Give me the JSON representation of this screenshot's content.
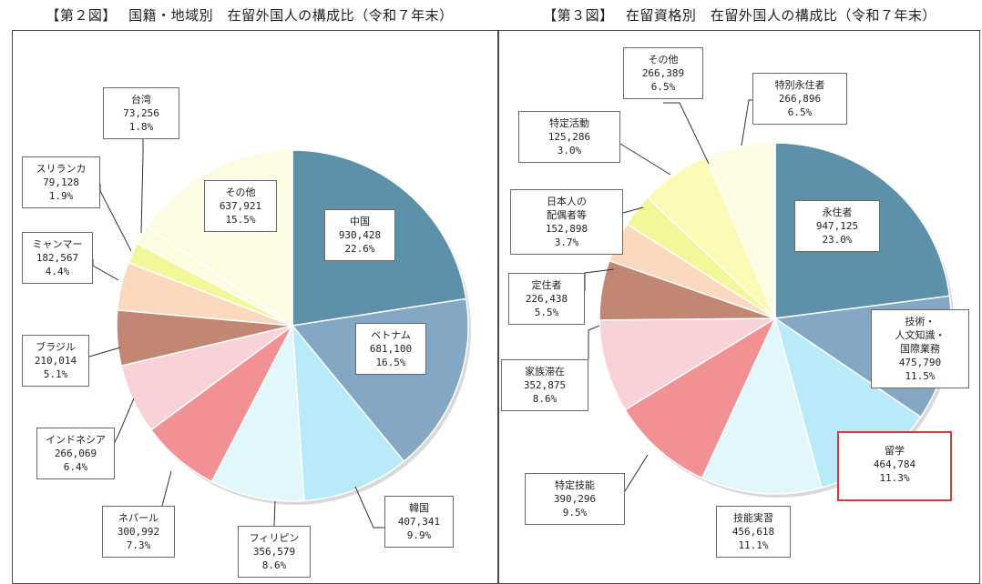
{
  "chart_data": [
    {
      "type": "pie",
      "title": "【第２図】　 国籍・地域別　在留外国人の構成比（令和７年末）",
      "slices": [
        {
          "name": "中国",
          "value": "930,428",
          "percent": "22.6%",
          "color": "#5d91aa"
        },
        {
          "name": "ベトナム",
          "value": "681,100",
          "percent": "16.5%",
          "color": "#84a7c4"
        },
        {
          "name": "韓国",
          "value": "407,341",
          "percent": "9.9%",
          "color": "#b9eaf9"
        },
        {
          "name": "フィリピン",
          "value": "356,579",
          "percent": "8.6%",
          "color": "#e1f7fb"
        },
        {
          "name": "ネパール",
          "value": "300,992",
          "percent": "7.3%",
          "color": "#f29193"
        },
        {
          "name": "インドネシア",
          "value": "266,069",
          "percent": "6.4%",
          "color": "#f8d2d6"
        },
        {
          "name": "ブラジル",
          "value": "210,014",
          "percent": "5.1%",
          "color": "#c28773"
        },
        {
          "name": "ミャンマー",
          "value": "182,567",
          "percent": "4.4%",
          "color": "#fad9be"
        },
        {
          "name": "スリランカ",
          "value": "79,128",
          "percent": "1.9%",
          "color": "#f2f79a"
        },
        {
          "name": "台湾",
          "value": "73,256",
          "percent": "1.8%",
          "color": "#fcfde0"
        },
        {
          "name": "その他",
          "value": "637,921",
          "percent": "15.5%",
          "color": "#fefbe3"
        }
      ]
    },
    {
      "type": "pie",
      "title": "【第３図】　 在留資格別　在留外国人の構成比（令和７年末）",
      "slices": [
        {
          "name": "永住者",
          "value": "947,125",
          "percent": "23.0%",
          "color": "#5d91aa"
        },
        {
          "name": "技術・人文知識・国際業務",
          "value": "475,790",
          "percent": "11.5%",
          "color": "#84a7c4"
        },
        {
          "name": "留学",
          "value": "464,784",
          "percent": "11.3%",
          "color": "#b9eaf9",
          "highlight": true
        },
        {
          "name": "技能実習",
          "value": "456,618",
          "percent": "11.1%",
          "color": "#e1f7fb"
        },
        {
          "name": "特定技能",
          "value": "390,296",
          "percent": "9.5%",
          "color": "#f29193"
        },
        {
          "name": "家族滞在",
          "value": "352,875",
          "percent": "8.6%",
          "color": "#f8d2d6"
        },
        {
          "name": "定住者",
          "value": "226,438",
          "percent": "5.5%",
          "color": "#c28773"
        },
        {
          "name": "日本人の配偶者等",
          "value": "152,898",
          "percent": "3.7%",
          "color": "#fad9be"
        },
        {
          "name": "特定活動",
          "value": "125,286",
          "percent": "3.0%",
          "color": "#f2f79a"
        },
        {
          "name": "その他",
          "value": "266,389",
          "percent": "6.5%",
          "color": "#fcfbb6"
        },
        {
          "name": "特別永住者",
          "value": "266,896",
          "percent": "6.5%",
          "color": "#fefbe3"
        }
      ]
    }
  ]
}
